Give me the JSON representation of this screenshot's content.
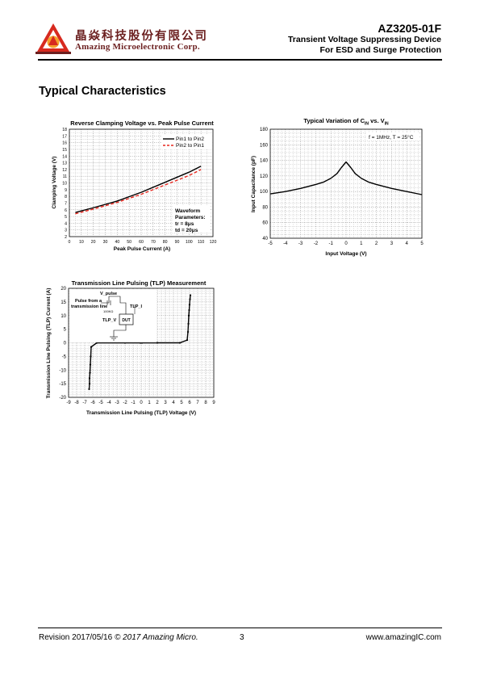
{
  "header": {
    "company_cn": "晶焱科技股份有限公司",
    "company_en": "Amazing Microelectronic Corp.",
    "part_number": "AZ3205-01F",
    "subtitle_line1": "Transient Voltage Suppressing Device",
    "subtitle_line2": "For ESD and Surge Protection"
  },
  "section_title": "Typical Characteristics",
  "footer": {
    "revision": "Revision 2017/05/16",
    "copyright": "© 2017 Amazing Micro.",
    "page": "3",
    "url": "www.amazingIC.com"
  },
  "colors": {
    "brand": "#6b1f1f",
    "logo_red": "#d72a1f",
    "logo_orange": "#f6a02a",
    "series_red": "#e8261d"
  },
  "chart_data": [
    {
      "type": "line",
      "title": "Reverse Clamping Voltage  vs. Peak Pulse Current",
      "xlabel": "Peak Pulse Current (A)",
      "ylabel": "Clamping Voltage (V)",
      "xlim": [
        0,
        120
      ],
      "ylim": [
        2,
        18
      ],
      "xticks": [
        0,
        10,
        20,
        30,
        40,
        50,
        60,
        70,
        80,
        90,
        100,
        110,
        120
      ],
      "yticks": [
        2,
        3,
        4,
        5,
        6,
        7,
        8,
        9,
        10,
        11,
        12,
        13,
        14,
        15,
        16,
        17,
        18
      ],
      "grid": true,
      "legend": "top-right",
      "annotation": [
        "Waveform",
        "Parameters:",
        "tr = 8μs",
        "td = 20μs"
      ],
      "series": [
        {
          "name": "Pin1 to Pin2",
          "style": "solid",
          "color": "#000000",
          "x": [
            5,
            20,
            40,
            60,
            80,
            100,
            110
          ],
          "y": [
            5.6,
            6.3,
            7.3,
            8.6,
            10.1,
            11.6,
            12.5
          ]
        },
        {
          "name": "Pin2 to Pin1",
          "style": "dashed",
          "color": "#e8261d",
          "x": [
            5,
            20,
            40,
            60,
            80,
            100,
            110
          ],
          "y": [
            5.4,
            6.1,
            7.1,
            8.3,
            9.7,
            11.1,
            12.0
          ]
        }
      ]
    },
    {
      "type": "line",
      "title_main": "Typical Variation of C",
      "title_sub1": "IN",
      "title_mid": " vs. V",
      "title_sub2": "IN",
      "xlabel": "Input Voltage (V)",
      "ylabel": "Input Capacitance (pF)",
      "xlim": [
        -5,
        5
      ],
      "ylim": [
        40,
        180
      ],
      "xticks": [
        -5,
        -4,
        -3,
        -2,
        -1,
        0,
        1,
        2,
        3,
        4,
        5
      ],
      "yticks": [
        40,
        60,
        80,
        100,
        120,
        140,
        160,
        180
      ],
      "grid": true,
      "annotation": "f = 1MHz, T = 25°C",
      "series": [
        {
          "x": [
            -5,
            -4,
            -3,
            -2,
            -1.5,
            -1,
            -0.6,
            -0.3,
            0,
            0.3,
            0.6,
            1,
            1.5,
            2,
            3,
            4,
            5
          ],
          "y": [
            97,
            100,
            104,
            109,
            112,
            117,
            123,
            131,
            138,
            131,
            123,
            117,
            112,
            109,
            104,
            100,
            96
          ]
        }
      ]
    },
    {
      "type": "scatter",
      "title": "Transmission Line Pulsing (TLP) Measurement",
      "xlabel": "Transmission Line Pulsing (TLP) Voltage (V)",
      "ylabel": "Transmission Line Pulsing (TLP) Current (A)",
      "xlim": [
        -9,
        9
      ],
      "ylim": [
        -20,
        20
      ],
      "xticks": [
        -9,
        -8,
        -7,
        -6,
        -5,
        -4,
        -3,
        -2,
        -1,
        0,
        1,
        2,
        3,
        4,
        5,
        6,
        7,
        8,
        9
      ],
      "yticks": [
        -20,
        -15,
        -10,
        -5,
        0,
        5,
        10,
        15,
        20
      ],
      "grid": true,
      "inset_labels": {
        "pulse_line1": "Pulse from a",
        "pulse_line2": "transmission line",
        "v_pulse": "V_pulse",
        "tlp_i": "TLP_I",
        "tlp_v": "TLP_V",
        "resistor": "100KΩ",
        "dut": "DUT"
      },
      "series": [
        {
          "name": "positive",
          "x": [
            -0.1,
            2.0,
            4.8,
            5.7,
            5.8,
            5.85,
            5.9,
            5.95,
            6.0,
            6.05,
            6.1
          ],
          "y": [
            0,
            0,
            0,
            1,
            4,
            7,
            10,
            12,
            14,
            16,
            17.5
          ]
        },
        {
          "name": "negative",
          "x": [
            0.1,
            -2.0,
            -5.5,
            -6.2,
            -6.25,
            -6.3,
            -6.35,
            -6.4,
            -6.4,
            -6.45
          ],
          "y": [
            0,
            0,
            0,
            -1.5,
            -5,
            -8,
            -11,
            -13,
            -15,
            -17
          ]
        }
      ]
    }
  ]
}
